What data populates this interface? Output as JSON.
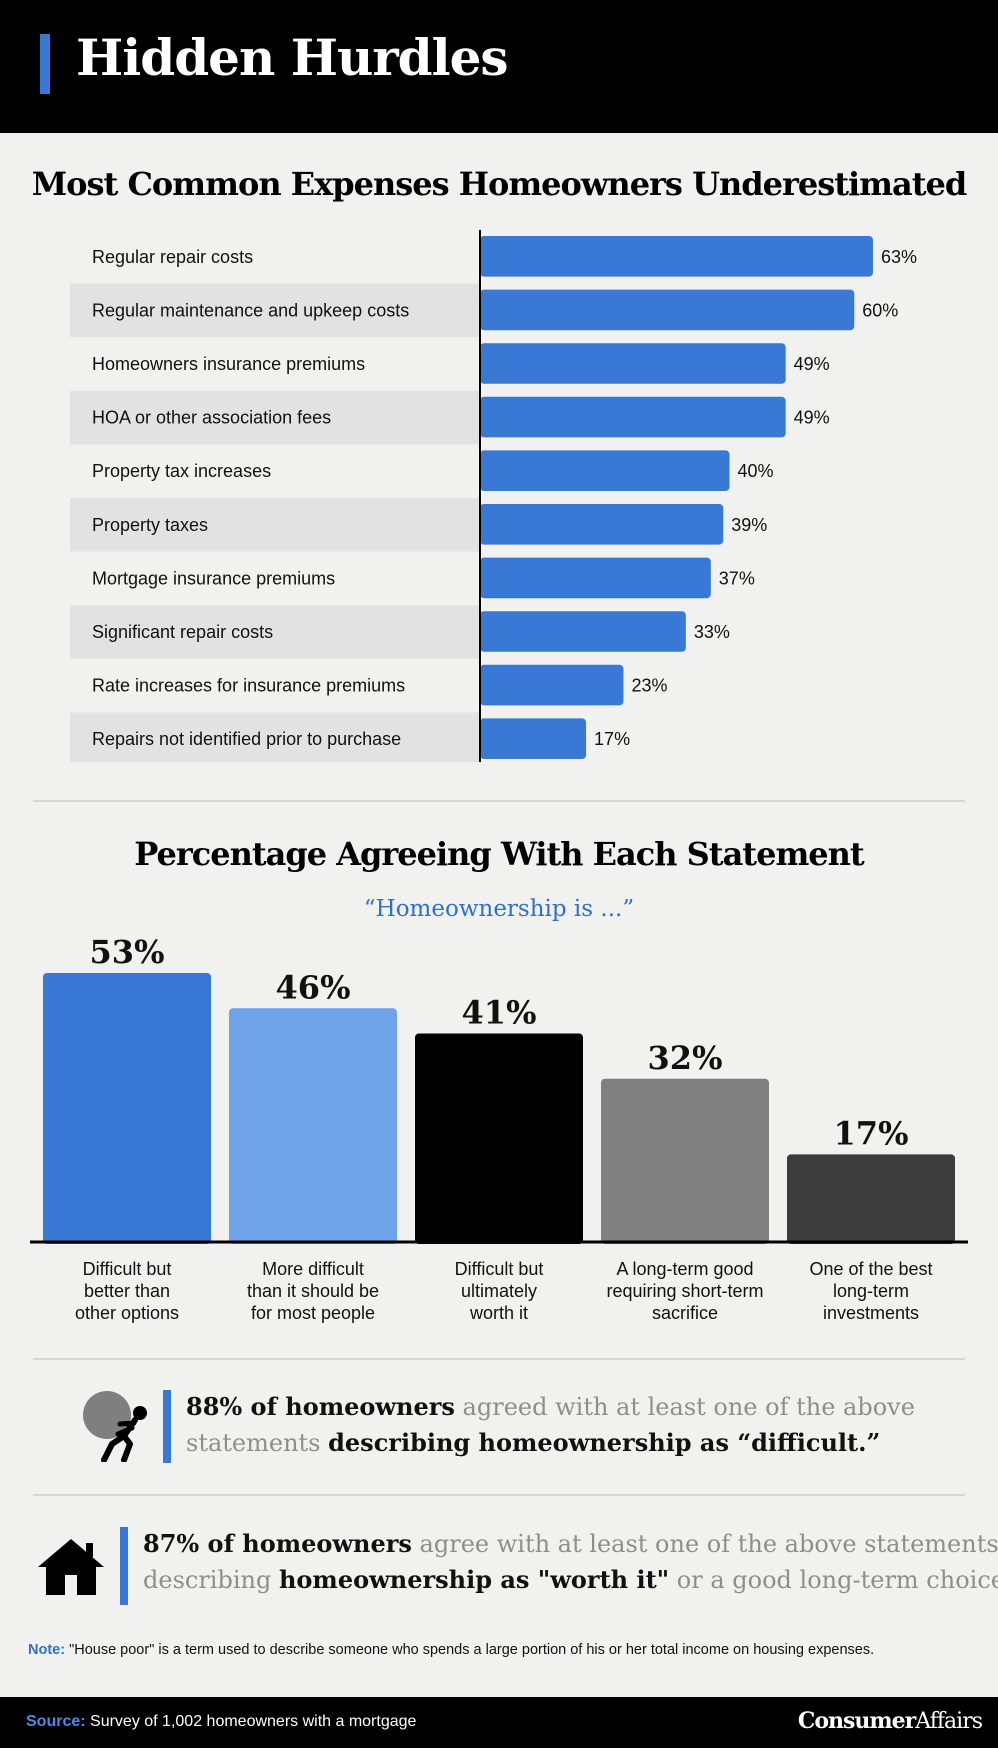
{
  "header": {
    "title": "Hidden Hurdles"
  },
  "section1": {
    "title": "Most Common Expenses Homeowners Underestimated"
  },
  "section2": {
    "title": "Percentage Agreeing With Each Statement",
    "subtitle": "“Homeownership is ...”"
  },
  "chart_data": [
    {
      "type": "bar",
      "orientation": "horizontal",
      "title": "Most Common Expenses Homeowners Underestimated",
      "categories": [
        "Regular repair costs",
        "Regular maintenance and upkeep costs",
        "Homeowners insurance premiums",
        "HOA or other association fees",
        "Property tax increases",
        "Property taxes",
        "Mortgage insurance premiums",
        "Significant repair costs",
        "Rate increases for insurance premiums",
        "Repairs not identified prior to purchase"
      ],
      "values": [
        63,
        60,
        49,
        49,
        40,
        39,
        37,
        33,
        23,
        17
      ],
      "value_labels": [
        "63%",
        "60%",
        "49%",
        "49%",
        "40%",
        "39%",
        "37%",
        "33%",
        "23%",
        "17%"
      ],
      "xlim": [
        0,
        100
      ],
      "grid": false,
      "bar_color": "#3a78d6",
      "row_stripe_color": "#e2e2e2"
    },
    {
      "type": "bar",
      "orientation": "vertical",
      "title": "Percentage Agreeing With Each Statement",
      "subtitle": "“Homeownership is ...”",
      "categories": [
        [
          "Difficult but",
          "better than",
          "other options"
        ],
        [
          "More difficult",
          "than it should be",
          "for most people"
        ],
        [
          "Difficult but",
          "ultimately",
          "worth it"
        ],
        [
          "A long-term good",
          "requiring short-term",
          "sacrifice"
        ],
        [
          "One of the best",
          "long-term",
          "investments"
        ]
      ],
      "values": [
        53,
        46,
        41,
        32,
        17
      ],
      "value_labels": [
        "53%",
        "46%",
        "41%",
        "32%",
        "17%"
      ],
      "ylim": [
        0,
        60
      ],
      "grid": false,
      "colors": [
        "#3a78d6",
        "#6fa3ea",
        "#000000",
        "#808080",
        "#3c3c3c"
      ]
    }
  ],
  "callouts": [
    {
      "icon": "person-pushing-boulder-icon",
      "accent_color": "#3a78d6",
      "line1_bold": "88% of homeowners",
      "line1_rest": " agreed with at least one of the above",
      "line2_rest": "statements ",
      "line2_bold": "describing homeownership as “difficult.”"
    },
    {
      "icon": "house-icon",
      "accent_color": "#3a78d6",
      "line1_bold": "87% of homeowners",
      "line1_rest": " agree with at least one of the above statements",
      "line2_rest": "describing ",
      "line2_bold1": "homeownership as \"worth it\"",
      "line2_rest2": " or a good long-term choice."
    }
  ],
  "note": {
    "label": "Note:",
    "text": " \"House poor\" is a term used to describe someone who spends a large portion of his or her total income on housing expenses."
  },
  "footer": {
    "source_label": "Source:",
    "source_text": " Survey of 1,002 homeowners with a mortgage",
    "logo_bold": "Consumer",
    "logo_regular": "Affairs"
  }
}
